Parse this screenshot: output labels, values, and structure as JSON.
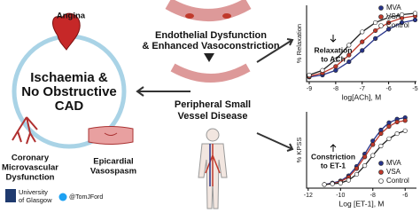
{
  "diagram": {
    "center_title": [
      "Ischaemia &",
      "No Obstructive",
      "CAD"
    ],
    "angina": "Angina",
    "cmd": [
      "Coronary",
      "Microvascular",
      "Dysfunction"
    ],
    "vasospasm": [
      "Epicardial",
      "Vasospasm"
    ],
    "endothelial": [
      "Endothelial Dysfunction",
      "& Enhanced Vasoconstriction"
    ],
    "peripheral": [
      "Peripheral Small",
      "Vessel Disease"
    ],
    "university": [
      "University",
      "of Glasgow"
    ],
    "handle": "@TomJFord"
  },
  "chart_data": [
    {
      "type": "line",
      "xlabel": "log[ACh], M",
      "ylabel": "% Relaxation",
      "annotation": [
        "Relaxation",
        "to ACh"
      ],
      "x": [
        -9,
        -8.5,
        -8,
        -7.5,
        -7,
        -6.5,
        -6,
        -5.5,
        -5
      ],
      "xlim": [
        -9.1,
        -4.95
      ],
      "xticks": [
        -9,
        -8,
        -7,
        -6,
        -5
      ],
      "ylim": [
        -5,
        110
      ],
      "legend": "upper right",
      "series": [
        {
          "name": "MVA",
          "color": "#27348b",
          "values": [
            2,
            5,
            12,
            25,
            42,
            60,
            74,
            84,
            88
          ]
        },
        {
          "name": "VSA",
          "color": "#c0392b",
          "values": [
            3,
            8,
            18,
            35,
            55,
            72,
            84,
            91,
            94
          ]
        },
        {
          "name": "Control",
          "color": "#ffffff",
          "values": [
            5,
            12,
            28,
            50,
            70,
            84,
            92,
            96,
            98
          ]
        }
      ]
    },
    {
      "type": "line",
      "xlabel": "Log [ET-1], M",
      "ylabel": "% KPSS",
      "annotation": [
        "Constriction",
        "to ET-1"
      ],
      "x": [
        -11,
        -10.5,
        -10,
        -9.5,
        -9,
        -8.5,
        -8,
        -7.5,
        -7,
        -6.5,
        -6
      ],
      "xlim": [
        -12.1,
        -5.3
      ],
      "xticks": [
        -12,
        -10,
        -8,
        -6
      ],
      "ylim": [
        -5,
        100
      ],
      "legend": "lower right",
      "series": [
        {
          "name": "MVA",
          "color": "#27348b",
          "values": [
            0,
            2,
            5,
            12,
            25,
            42,
            60,
            75,
            85,
            90,
            92
          ]
        },
        {
          "name": "VSA",
          "color": "#c0392b",
          "values": [
            0,
            1,
            4,
            10,
            22,
            38,
            55,
            70,
            80,
            86,
            88
          ]
        },
        {
          "name": "Control",
          "color": "#ffffff",
          "values": [
            0,
            1,
            2,
            6,
            14,
            26,
            40,
            53,
            63,
            70,
            74
          ]
        }
      ]
    }
  ]
}
